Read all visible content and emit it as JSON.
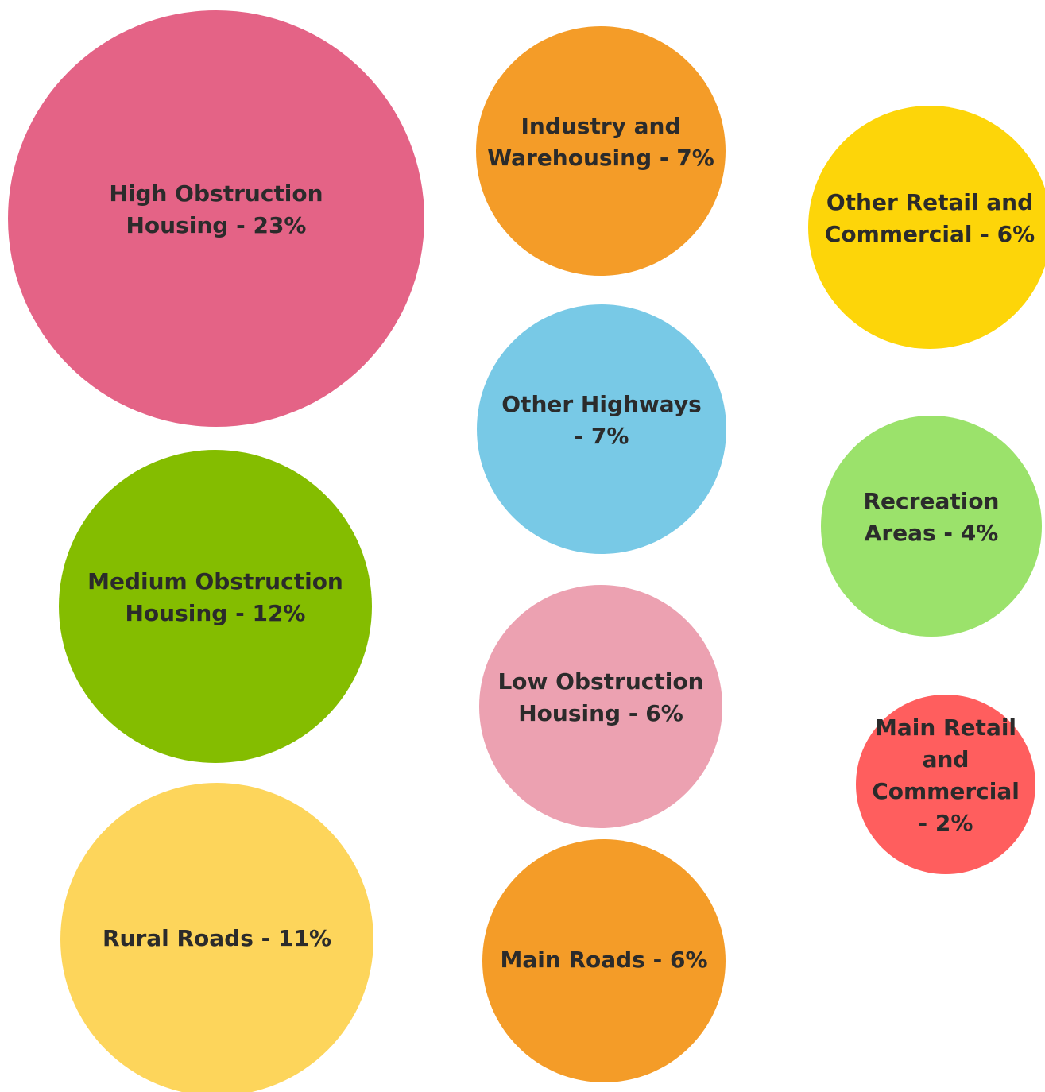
{
  "chart_data": {
    "type": "bubble",
    "title": "",
    "categories": [
      "High Obstruction Housing",
      "Industry and Warehousing",
      "Other Retail and Commercial",
      "Other Highways",
      "Recreation Areas",
      "Medium Obstruction Housing",
      "Low Obstruction Housing",
      "Main Retail and Commercial",
      "Rural Roads",
      "Main Roads"
    ],
    "values": [
      23,
      7,
      6,
      7,
      4,
      12,
      6,
      2,
      11,
      6
    ],
    "bubbles": [
      {
        "label_lines": [
          "High Obstruction",
          "Housing - 23%"
        ],
        "value": 23,
        "color": "#E46386"
      },
      {
        "label_lines": [
          "Industry and",
          "Warehousing - 7%"
        ],
        "value": 7,
        "color": "#F49C28"
      },
      {
        "label_lines": [
          "Other Retail and",
          "Commercial - 6%"
        ],
        "value": 6,
        "color": "#FDD509"
      },
      {
        "label_lines": [
          "Other Highways",
          "- 7%"
        ],
        "value": 7,
        "color": "#78C9E6"
      },
      {
        "label_lines": [
          "Recreation",
          "Areas - 4%"
        ],
        "value": 4,
        "color": "#9BE26B"
      },
      {
        "label_lines": [
          "Medium Obstruction",
          "Housing - 12%"
        ],
        "value": 12,
        "color": "#84BD00"
      },
      {
        "label_lines": [
          "Low Obstruction",
          "Housing - 6%"
        ],
        "value": 6,
        "color": "#ECA1B1"
      },
      {
        "label_lines": [
          "Main Retail",
          "and",
          "Commercial",
          "- 2%"
        ],
        "value": 2,
        "color": "#FF5E5E"
      },
      {
        "label_lines": [
          "Rural Roads - 11%"
        ],
        "value": 11,
        "color": "#FDD55B"
      },
      {
        "label_lines": [
          "Main Roads - 6%"
        ],
        "value": 6,
        "color": "#F49C28"
      }
    ]
  }
}
